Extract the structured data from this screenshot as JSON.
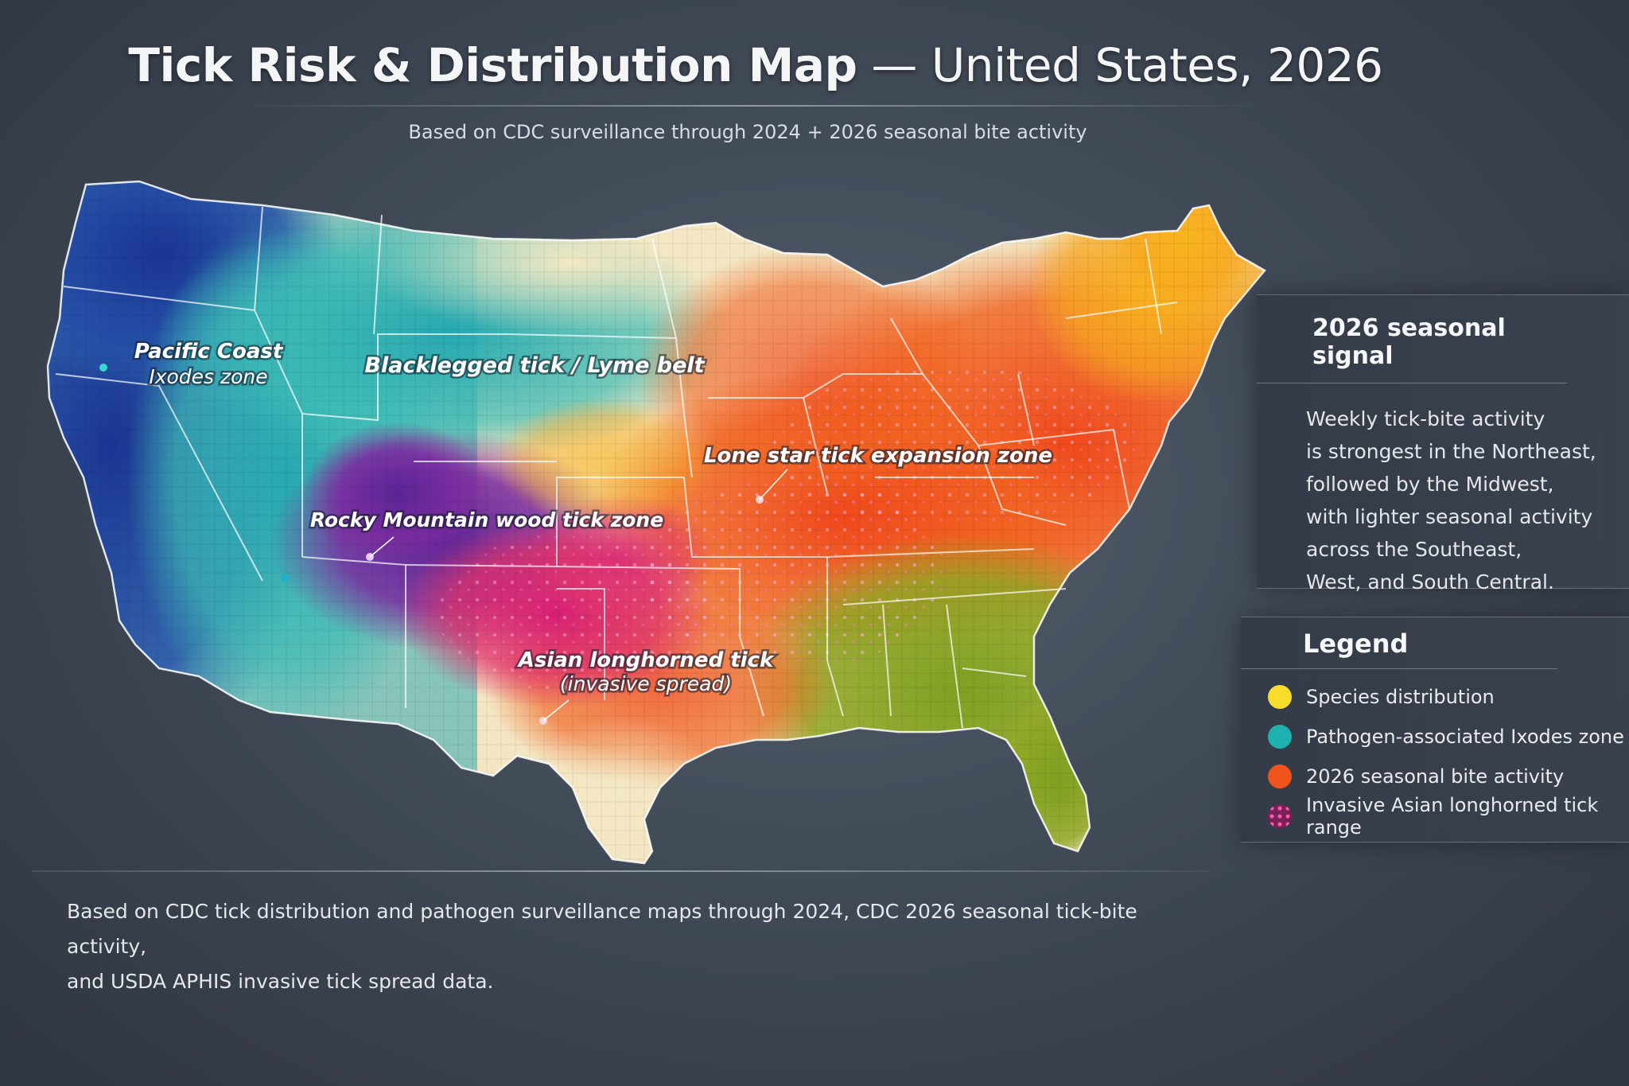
{
  "header": {
    "title_bold": "Tick Risk & Distribution Map",
    "title_rest": " — United States, 2026",
    "subtitle": "Based on CDC surveillance through 2024 + 2026 seasonal bite activity"
  },
  "map": {
    "region": "United States",
    "labels": {
      "pacific_line1": "Pacific Coast",
      "pacific_line2": "Ixodes zone",
      "blacklegged": "Blacklegged tick / Lyme belt",
      "lone_star": "Lone star tick expansion zone",
      "rocky": "Rocky Mountain wood tick zone",
      "asian_line1": "Asian longhorned tick",
      "asian_line2": "(invasive spread)"
    },
    "colors": {
      "pacific": "#1f3f9e",
      "ixodes_teal": "#2fb3b5",
      "plains_cream": "#efe6c2",
      "rocky_purple": "#6b2aa0",
      "longhorned_magenta": "#d8207a",
      "bite_orange": "#f05a1e",
      "northeast_yellow": "#f6b41e",
      "southeast_green": "#8aa623"
    }
  },
  "signal_panel": {
    "heading": "2026 seasonal signal",
    "lines": [
      "Weekly tick-bite activity",
      "is strongest in the Northeast,",
      "followed by the Midwest,",
      "with lighter seasonal activity",
      "across the Southeast,",
      "West, and South Central."
    ]
  },
  "legend": {
    "heading": "Legend",
    "items": [
      {
        "label": "Species distribution",
        "color": "#f7dc2c"
      },
      {
        "label": "Pathogen-associated Ixodes zone",
        "color": "#1fb0b0"
      },
      {
        "label": "2026 seasonal bite activity",
        "color": "#f0541c"
      },
      {
        "label": "Invasive Asian longhorned tick range",
        "color": "#d8207a"
      }
    ]
  },
  "footer": {
    "line1": "Based on CDC tick distribution and pathogen surveillance maps through 2024, CDC 2026 seasonal tick-bite activity,",
    "line2": "and USDA APHIS invasive tick spread data."
  }
}
